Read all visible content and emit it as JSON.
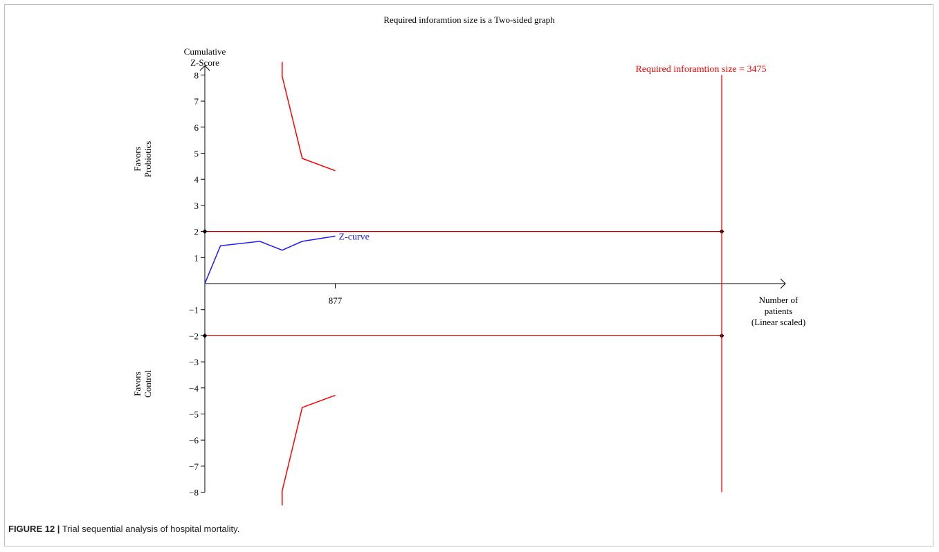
{
  "chart_data": {
    "type": "line",
    "title": "Required inforamtion size is a Two-sided graph",
    "ylabel": [
      "Cumulative",
      "Z-Score"
    ],
    "xlabel": [
      "Number of",
      "patients",
      "(Linear scaled)"
    ],
    "ylim": [
      -8,
      8
    ],
    "xlim": [
      0,
      3475
    ],
    "y_ticks": [
      8,
      7,
      6,
      5,
      4,
      3,
      2,
      1,
      -1,
      -2,
      -3,
      -4,
      -5,
      -6,
      -7,
      -8
    ],
    "y_tick_labels": [
      "8",
      "7",
      "6",
      "5",
      "4",
      "3",
      "2",
      "1",
      "−1",
      "−2",
      "−3",
      "−4",
      "−5",
      "−6",
      "−7",
      "−8"
    ],
    "x_tick_value": 877,
    "x_tick_label": "877",
    "region_labels": {
      "upper": [
        "Favors",
        "Probiotics"
      ],
      "lower": [
        "Favors",
        "Control"
      ]
    },
    "required_information_size": 3475,
    "ris_label": "Required inforamtion size = 3475",
    "conventional_boundaries": [
      2,
      -2
    ],
    "series": [
      {
        "name": "Z-curve",
        "color": "#1a1aff",
        "points": [
          [
            0,
            0
          ],
          [
            105,
            1.45
          ],
          [
            370,
            1.62
          ],
          [
            520,
            1.28
          ],
          [
            655,
            1.62
          ],
          [
            877,
            1.82
          ]
        ]
      },
      {
        "color": "#ff0000",
        "points": [
          [
            520,
            8.5
          ],
          [
            520,
            7.95
          ],
          [
            655,
            4.8
          ],
          [
            877,
            4.33
          ]
        ]
      },
      {
        "color": "#ff0000",
        "points": [
          [
            520,
            -8.5
          ],
          [
            520,
            -7.95
          ],
          [
            655,
            -4.75
          ],
          [
            877,
            -4.28
          ]
        ]
      }
    ],
    "boundary_color": "#a50000",
    "ris_color": "#ff0000",
    "grid": false
  },
  "caption": {
    "label": "FIGURE 12 |",
    "text": " Trial sequential analysis of hospital mortality."
  }
}
